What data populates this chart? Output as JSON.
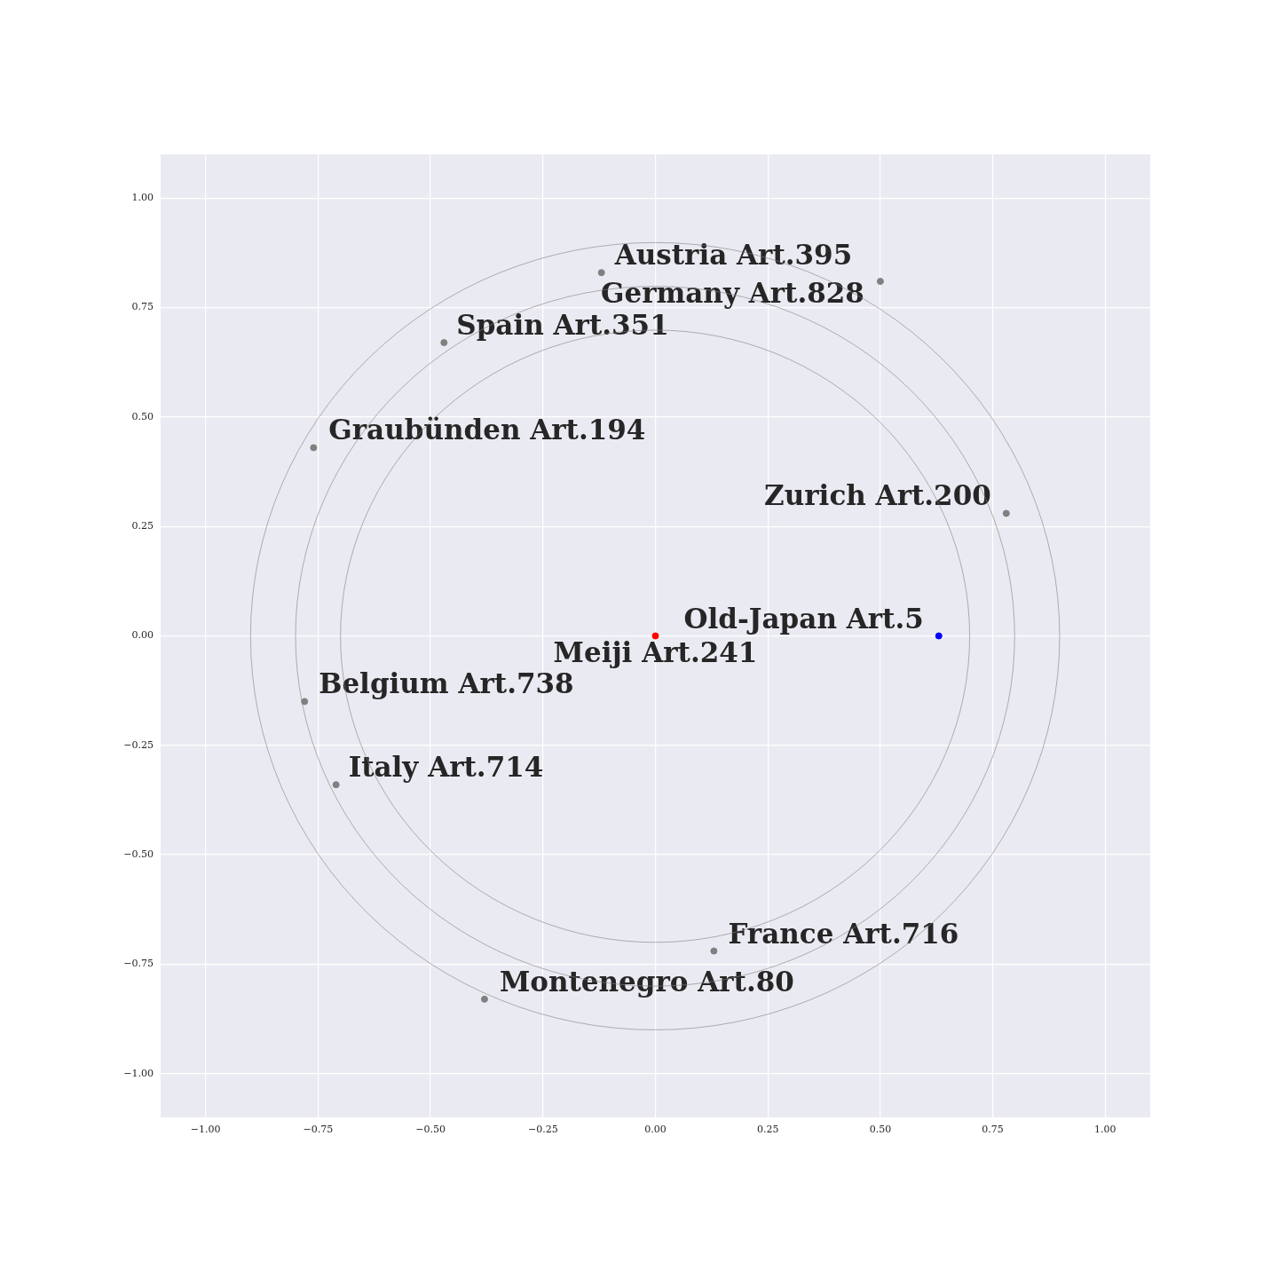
{
  "chart_data": {
    "type": "scatter",
    "xlim": [
      -1.1,
      1.1
    ],
    "ylim": [
      -1.1,
      1.1
    ],
    "xticks": [
      {
        "value": -1,
        "label": "−1.00"
      },
      {
        "value": -0.75,
        "label": "−0.75"
      },
      {
        "value": -0.5,
        "label": "−0.50"
      },
      {
        "value": -0.25,
        "label": "−0.25"
      },
      {
        "value": 0,
        "label": "0.00"
      },
      {
        "value": 0.25,
        "label": "0.25"
      },
      {
        "value": 0.5,
        "label": "0.50"
      },
      {
        "value": 0.75,
        "label": "0.75"
      },
      {
        "value": 1,
        "label": "1.00"
      }
    ],
    "yticks": [
      {
        "value": -1,
        "label": "−1.00"
      },
      {
        "value": -0.75,
        "label": "−0.75"
      },
      {
        "value": -0.5,
        "label": "−0.50"
      },
      {
        "value": -0.25,
        "label": "−0.25"
      },
      {
        "value": 0,
        "label": "0.00"
      },
      {
        "value": 0.25,
        "label": "0.25"
      },
      {
        "value": 0.5,
        "label": "0.50"
      },
      {
        "value": 0.75,
        "label": "0.75"
      },
      {
        "value": 1,
        "label": "1.00"
      }
    ],
    "grid": true,
    "legend": false,
    "marker": "circle",
    "series": [
      {
        "x": [
          -0.12,
          0.5,
          -0.47,
          -0.76,
          0.78,
          0.63,
          0,
          -0.78,
          -0.71,
          0.13,
          -0.38
        ],
        "values": [
          0.83,
          0.81,
          0.67,
          0.43,
          0.28,
          0,
          0,
          -0.15,
          -0.34,
          -0.72,
          -0.83
        ],
        "colors": [
          "#808080",
          "#808080",
          "#808080",
          "#808080",
          "#808080",
          "#0000ff",
          "#ff0000",
          "#808080",
          "#808080",
          "#808080",
          "#808080"
        ],
        "value_labels": [
          "Austria Art.395",
          "Germany Art.828",
          "Spain Art.351",
          "Graubünden Art.194",
          "Zurich Art.200",
          "Old-Japan Art.5",
          "Meiji Art.241",
          "Belgium Art.738",
          "Italy Art.714",
          "France Art.716",
          "Montenegro Art.80"
        ]
      }
    ]
  }
}
